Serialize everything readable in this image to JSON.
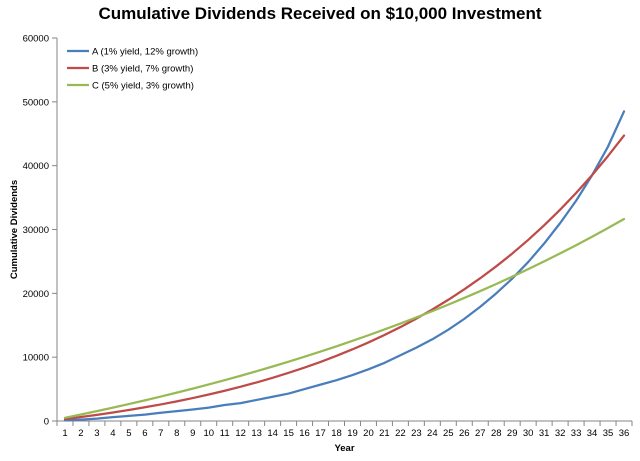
{
  "chart_data": {
    "type": "line",
    "title": "Cumulative Dividends Received on $10,000 Investment",
    "xlabel": "Year",
    "ylabel": "Cumulative Dividends",
    "ylim": [
      0,
      60000
    ],
    "yticks": [
      0,
      10000,
      20000,
      30000,
      40000,
      50000,
      60000
    ],
    "grid": false,
    "legend_position": "top-left",
    "categories": [
      1,
      2,
      3,
      4,
      5,
      6,
      7,
      8,
      9,
      10,
      11,
      12,
      13,
      14,
      15,
      16,
      17,
      18,
      19,
      20,
      21,
      22,
      23,
      24,
      25,
      26,
      27,
      28,
      29,
      30,
      31,
      32,
      33,
      34,
      35,
      36
    ],
    "series": [
      {
        "name": "A (1% yield, 12% growth)",
        "color": "#4a7ebb",
        "values": [
          100,
          212,
          378,
          600,
          800,
          1000,
          1300,
          1540,
          1800,
          2100,
          2500,
          2800,
          3300,
          3800,
          4300,
          5000,
          5700,
          6400,
          7200,
          8100,
          9100,
          10300,
          11500,
          12800,
          14300,
          16000,
          17900,
          20000,
          22300,
          24900,
          27800,
          31000,
          34500,
          38500,
          43000,
          48500
        ]
      },
      {
        "name": "B (3% yield, 7% growth)",
        "color": "#be4b48",
        "values": [
          300,
          621,
          965,
          1333,
          1727,
          2148,
          2598,
          3080,
          3596,
          4148,
          4739,
          5371,
          6047,
          6771,
          7545,
          8373,
          9260,
          10209,
          11224,
          12310,
          13472,
          14715,
          16046,
          17470,
          18993,
          20623,
          22367,
          24233,
          26230,
          28367,
          30654,
          33100,
          35718,
          38519,
          41516,
          44723
        ]
      },
      {
        "name": "C (5% yield, 3% growth)",
        "color": "#98b954",
        "values": [
          500,
          1015,
          1545,
          2091,
          2653,
          3232,
          3829,
          4443,
          5076,
          5728,
          6400,
          7092,
          7805,
          8540,
          9296,
          10075,
          10878,
          11705,
          12556,
          13434,
          14337,
          15267,
          16225,
          17212,
          18229,
          19276,
          20355,
          21466,
          22610,
          23788,
          25002,
          26252,
          27540,
          28866,
          30232,
          31640
        ]
      }
    ]
  }
}
